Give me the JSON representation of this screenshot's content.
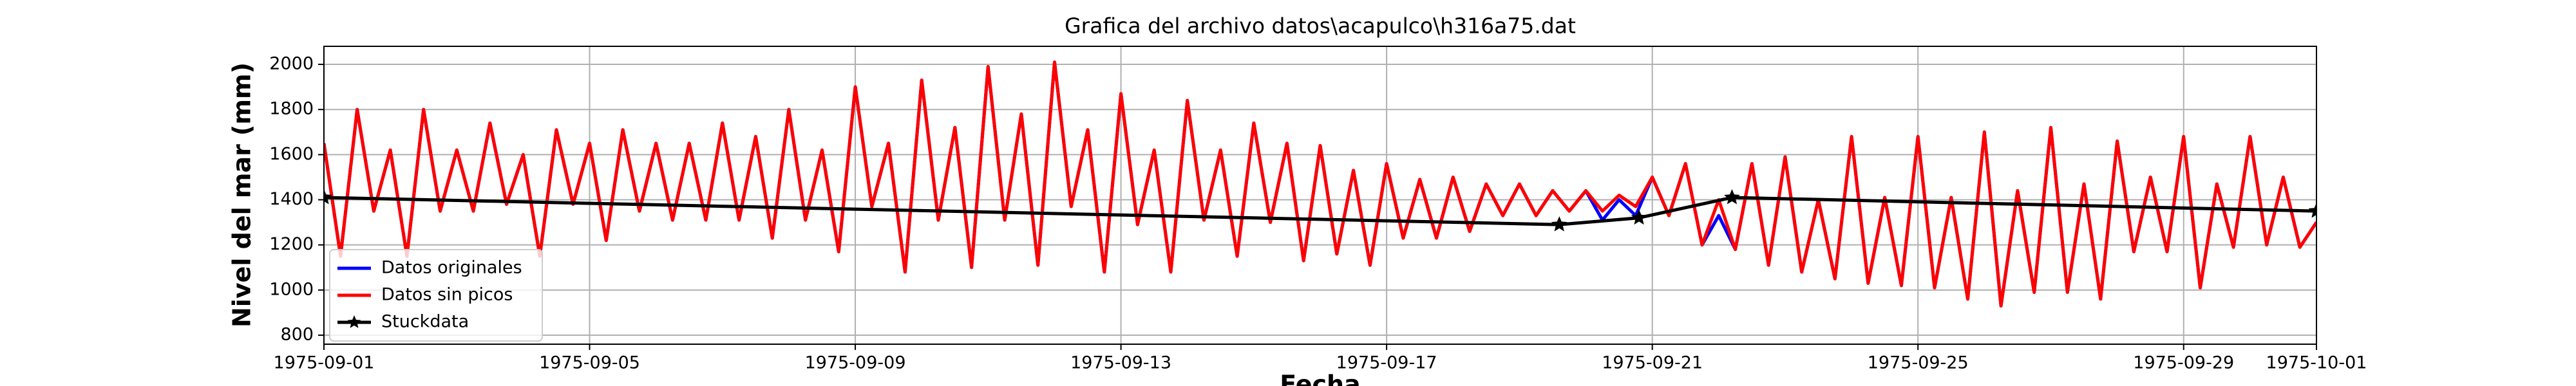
{
  "chart_data": {
    "type": "line",
    "title": "Grafica del archivo datos\\acapulco\\h316a75.dat",
    "xlabel": "Fecha",
    "ylabel": "Nivel del mar (mm)",
    "xlim": [
      0,
      30
    ],
    "xticks": [
      {
        "value": 0,
        "label": "1975-09-01"
      },
      {
        "value": 4,
        "label": "1975-09-05"
      },
      {
        "value": 8,
        "label": "1975-09-09"
      },
      {
        "value": 12,
        "label": "1975-09-13"
      },
      {
        "value": 16,
        "label": "1975-09-17"
      },
      {
        "value": 20,
        "label": "1975-09-21"
      },
      {
        "value": 24,
        "label": "1975-09-25"
      },
      {
        "value": 28,
        "label": "1975-09-29"
      },
      {
        "value": 30,
        "label": "1975-10-01"
      }
    ],
    "ylim": [
      760,
      2080
    ],
    "yticks": [
      800,
      1000,
      1200,
      1400,
      1600,
      1800,
      2000
    ],
    "grid": true,
    "legend": "lower left",
    "series": [
      {
        "name": "Datos originales",
        "color": "#0000ff",
        "x": [
          0,
          0.25,
          0.5,
          0.75,
          1,
          1.25,
          1.5,
          1.75,
          2,
          2.25,
          2.5,
          2.75,
          3,
          3.25,
          3.5,
          3.75,
          4,
          4.25,
          4.5,
          4.75,
          5,
          5.25,
          5.5,
          5.75,
          6,
          6.25,
          6.5,
          6.75,
          7,
          7.25,
          7.5,
          7.75,
          8,
          8.25,
          8.5,
          8.75,
          9,
          9.25,
          9.5,
          9.75,
          10,
          10.25,
          10.5,
          10.75,
          11,
          11.25,
          11.5,
          11.75,
          12,
          12.25,
          12.5,
          12.75,
          13,
          13.25,
          13.5,
          13.75,
          14,
          14.25,
          14.5,
          14.75,
          15,
          15.25,
          15.5,
          15.75,
          16,
          16.25,
          16.5,
          16.75,
          17,
          17.25,
          17.5,
          17.75,
          18,
          18.25,
          18.5,
          18.75,
          19,
          19.25,
          19.5,
          19.75,
          20,
          20.25,
          20.5,
          20.75,
          21,
          21.25,
          21.5,
          21.75,
          22,
          22.25,
          22.5,
          22.75,
          23,
          23.25,
          23.5,
          23.75,
          24,
          24.25,
          24.5,
          24.75,
          25,
          25.25,
          25.5,
          25.75,
          26,
          26.25,
          26.5,
          26.75,
          27,
          27.25,
          27.5,
          27.75,
          28,
          28.25,
          28.5,
          28.75,
          29,
          29.25,
          29.5,
          29.75,
          30
        ],
        "values": [
          1650,
          1150,
          1800,
          1350,
          1620,
          1150,
          1800,
          1350,
          1620,
          1350,
          1740,
          1380,
          1600,
          1150,
          1710,
          1380,
          1650,
          1220,
          1710,
          1350,
          1650,
          1310,
          1650,
          1310,
          1740,
          1310,
          1680,
          1230,
          1800,
          1310,
          1620,
          1170,
          1900,
          1370,
          1650,
          1080,
          1930,
          1310,
          1720,
          1100,
          1990,
          1310,
          1780,
          1110,
          2010,
          1370,
          1710,
          1080,
          1870,
          1290,
          1620,
          1080,
          1840,
          1310,
          1620,
          1150,
          1740,
          1300,
          1650,
          1130,
          1640,
          1160,
          1530,
          1110,
          1560,
          1230,
          1490,
          1230,
          1500,
          1260,
          1470,
          1330,
          1470,
          1330,
          1440,
          1350,
          1440,
          1310,
          1400,
          1330,
          1500,
          1330,
          1560,
          1200,
          1330,
          1180,
          1560,
          1110,
          1590,
          1080,
          1400,
          1050,
          1680,
          1030,
          1410,
          1020,
          1680,
          1010,
          1410,
          960,
          1700,
          930,
          1440,
          990,
          1720,
          990,
          1470,
          960,
          1660,
          1170,
          1500,
          1170,
          1680,
          1010,
          1470,
          1190,
          1680,
          1200,
          1500,
          1190,
          1300
        ]
      },
      {
        "name": "Datos sin picos",
        "color": "#ff0000",
        "x": [
          0,
          0.25,
          0.5,
          0.75,
          1,
          1.25,
          1.5,
          1.75,
          2,
          2.25,
          2.5,
          2.75,
          3,
          3.25,
          3.5,
          3.75,
          4,
          4.25,
          4.5,
          4.75,
          5,
          5.25,
          5.5,
          5.75,
          6,
          6.25,
          6.5,
          6.75,
          7,
          7.25,
          7.5,
          7.75,
          8,
          8.25,
          8.5,
          8.75,
          9,
          9.25,
          9.5,
          9.75,
          10,
          10.25,
          10.5,
          10.75,
          11,
          11.25,
          11.5,
          11.75,
          12,
          12.25,
          12.5,
          12.75,
          13,
          13.25,
          13.5,
          13.75,
          14,
          14.25,
          14.5,
          14.75,
          15,
          15.25,
          15.5,
          15.75,
          16,
          16.25,
          16.5,
          16.75,
          17,
          17.25,
          17.5,
          17.75,
          18,
          18.25,
          18.5,
          18.75,
          19,
          19.25,
          19.5,
          19.75,
          20,
          20.25,
          20.5,
          20.75,
          21,
          21.25,
          21.5,
          21.75,
          22,
          22.25,
          22.5,
          22.75,
          23,
          23.25,
          23.5,
          23.75,
          24,
          24.25,
          24.5,
          24.75,
          25,
          25.25,
          25.5,
          25.75,
          26,
          26.25,
          26.5,
          26.75,
          27,
          27.25,
          27.5,
          27.75,
          28,
          28.25,
          28.5,
          28.75,
          29,
          29.25,
          29.5,
          29.75,
          30
        ],
        "values": [
          1650,
          1150,
          1800,
          1350,
          1620,
          1150,
          1800,
          1350,
          1620,
          1350,
          1740,
          1380,
          1600,
          1150,
          1710,
          1380,
          1650,
          1220,
          1710,
          1350,
          1650,
          1310,
          1650,
          1310,
          1740,
          1310,
          1680,
          1230,
          1800,
          1310,
          1620,
          1170,
          1900,
          1370,
          1650,
          1080,
          1930,
          1310,
          1720,
          1100,
          1990,
          1310,
          1780,
          1110,
          2010,
          1370,
          1710,
          1080,
          1870,
          1290,
          1620,
          1080,
          1840,
          1310,
          1620,
          1150,
          1740,
          1300,
          1650,
          1130,
          1640,
          1160,
          1530,
          1110,
          1560,
          1230,
          1490,
          1230,
          1500,
          1260,
          1470,
          1330,
          1470,
          1330,
          1440,
          1350,
          1440,
          1350,
          1420,
          1370,
          1500,
          1330,
          1560,
          1200,
          1400,
          1180,
          1560,
          1110,
          1590,
          1080,
          1400,
          1050,
          1680,
          1030,
          1410,
          1020,
          1680,
          1010,
          1410,
          960,
          1700,
          930,
          1440,
          990,
          1720,
          990,
          1470,
          960,
          1660,
          1170,
          1500,
          1170,
          1680,
          1010,
          1470,
          1190,
          1680,
          1200,
          1500,
          1190,
          1300
        ]
      },
      {
        "name": "Stuckdata",
        "color": "#000000",
        "marker": "*",
        "x": [
          0,
          18.6,
          19.8,
          21.2,
          30
        ],
        "values": [
          1410,
          1290,
          1320,
          1410,
          1350
        ]
      }
    ]
  }
}
